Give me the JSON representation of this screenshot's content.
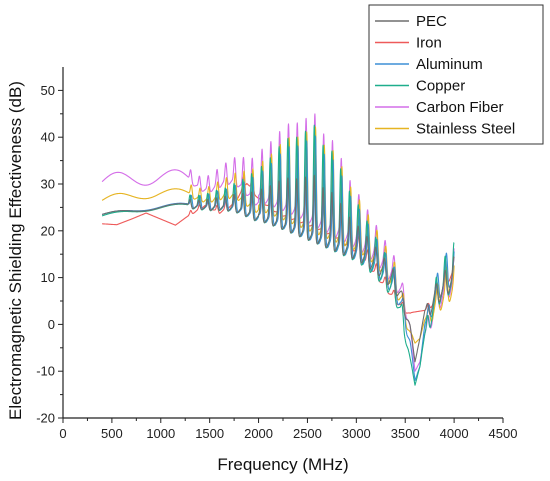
{
  "chart_data": {
    "type": "line",
    "xlabel": "Frequency (MHz)",
    "ylabel": "Electromagnetic Shielding Effectiveness (dB)",
    "xlim": [
      0,
      4500
    ],
    "ylim": [
      -20,
      55
    ],
    "x_ticks": [
      0,
      500,
      1000,
      1500,
      2000,
      2500,
      3000,
      3500,
      4000,
      4500
    ],
    "y_ticks": [
      -20,
      -10,
      0,
      10,
      20,
      30,
      40,
      50
    ],
    "legend_position": "top-right",
    "grid": false,
    "series": [
      {
        "name": "PEC",
        "color": "#6e6e6e",
        "x": [
          400,
          600,
          800,
          1000,
          1200,
          1400,
          1600,
          1800,
          2000,
          2200,
          2400,
          2600,
          2800,
          3000,
          3200,
          3400,
          3500,
          3550,
          3600,
          3650,
          3700,
          3800,
          3900,
          4000
        ],
        "y": [
          23.5,
          24,
          24.5,
          25,
          25.5,
          25.8,
          25.5,
          24.8,
          23.8,
          22.5,
          21,
          19.5,
          18,
          16.5,
          14,
          10,
          5,
          0,
          -8,
          -3,
          3,
          7,
          9,
          11
        ]
      },
      {
        "name": "Iron",
        "color": "#ee5a5a",
        "x": [
          400,
          550,
          700,
          850,
          1000,
          1150,
          1300,
          1450,
          1600,
          1750,
          1880,
          2000,
          2200,
          2400,
          2600,
          2800,
          3000,
          3200,
          3400,
          3550,
          3700,
          3850,
          4000
        ],
        "y": [
          21.5,
          21.3,
          22.5,
          23.8,
          22.5,
          21.2,
          23.5,
          25.5,
          24,
          26,
          30.5,
          27,
          24,
          22.5,
          21,
          19,
          16,
          11,
          5.5,
          2.5,
          3,
          6.5,
          12
        ]
      },
      {
        "name": "Aluminum",
        "color": "#3d8fd6",
        "x": [
          400,
          600,
          800,
          1000,
          1200,
          1400,
          1600,
          1800,
          2000,
          2200,
          2400,
          2600,
          2800,
          3000,
          3200,
          3400,
          3500,
          3550,
          3600,
          3650,
          3700,
          3800,
          3900,
          4000
        ],
        "y": [
          23.5,
          24,
          24.6,
          25.1,
          25.6,
          25.9,
          25.6,
          24.9,
          23.9,
          22.6,
          21.1,
          19.6,
          18,
          16.5,
          13.5,
          9,
          3,
          -3,
          -12,
          -9,
          0,
          7,
          10,
          12
        ]
      },
      {
        "name": "Copper",
        "color": "#1eae8c",
        "x": [
          400,
          600,
          800,
          1000,
          1200,
          1400,
          1600,
          1800,
          2000,
          2200,
          2400,
          2600,
          2800,
          3000,
          3200,
          3400,
          3500,
          3550,
          3600,
          3650,
          3700,
          3800,
          3900,
          4000
        ],
        "y": [
          23.2,
          23.8,
          24.4,
          24.9,
          25.4,
          25.7,
          25.4,
          24.7,
          23.7,
          22.4,
          20.9,
          19.4,
          17.8,
          16.2,
          13,
          8,
          0,
          -7,
          -13,
          -9,
          -2,
          6,
          9,
          10
        ]
      },
      {
        "name": "Carbon Fiber",
        "color": "#d46ee8",
        "x": [
          400,
          600,
          800,
          1000,
          1200,
          1400,
          1600,
          1800,
          2000,
          2200,
          2400,
          2600,
          2800,
          3000,
          3200,
          3400,
          3500,
          3550,
          3600,
          3650,
          3700,
          3800,
          3900,
          4000
        ],
        "y": [
          30.5,
          31,
          31.3,
          31.5,
          31.4,
          31,
          30.2,
          29.2,
          28,
          26.5,
          25,
          23,
          21,
          19,
          16,
          11,
          6,
          0,
          -10,
          -8,
          -2,
          5,
          8,
          10
        ]
      },
      {
        "name": "Stainless Steel",
        "color": "#e6b422",
        "x": [
          400,
          600,
          800,
          1000,
          1200,
          1400,
          1600,
          1800,
          2000,
          2200,
          2400,
          2600,
          2800,
          3000,
          3200,
          3400,
          3500,
          3550,
          3600,
          3650,
          3700,
          3800,
          3900,
          4000
        ],
        "y": [
          26.5,
          27.2,
          27.7,
          28,
          28.1,
          28,
          27.6,
          27,
          26,
          24.6,
          23,
          21.5,
          20,
          18.5,
          15.5,
          10,
          4,
          -1,
          -4,
          -3,
          1,
          5,
          7,
          9
        ]
      }
    ],
    "resonances": {
      "x": [
        1300,
        1390,
        1480,
        1570,
        1660,
        1750,
        1840,
        1930,
        2030,
        2120,
        2210,
        2300,
        2390,
        2480,
        2570,
        2660,
        2750,
        2840,
        2930,
        3020,
        3110,
        3200,
        3290,
        3380,
        3470,
        3730,
        3820,
        3910,
        4000
      ],
      "peak_boost": [
        2.5,
        2.6,
        3.2,
        3.8,
        4.3,
        5.5,
        7,
        9,
        11,
        13.5,
        16.5,
        19,
        20,
        22,
        24,
        20.5,
        20,
        17,
        13,
        11,
        9,
        7,
        6,
        5,
        3,
        3,
        5,
        7,
        9
      ],
      "dip_depth": [
        1.5,
        1.6,
        1.8,
        2,
        2.2,
        2.4,
        2.6,
        2.8,
        3,
        3.2,
        3.4,
        3.6,
        3.8,
        4,
        4.2,
        4.4,
        4.6,
        4.8,
        5,
        5.2,
        5.4,
        5.6,
        5.8,
        6,
        6,
        6,
        6,
        6,
        6
      ],
      "series_peak_scale": [
        0.55,
        0.35,
        0.9,
        1.0,
        0.95,
        0.9
      ]
    }
  }
}
